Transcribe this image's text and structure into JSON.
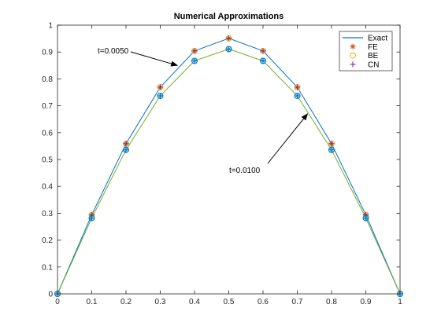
{
  "chart_data": {
    "type": "line",
    "title": "Numerical Approximations",
    "xlabel": "",
    "ylabel": "",
    "xlim": [
      0,
      1
    ],
    "ylim": [
      0,
      1
    ],
    "xticks": [
      "0",
      "0.1",
      "0.2",
      "0.3",
      "0.4",
      "0.5",
      "0.6",
      "0.7",
      "0.8",
      "0.9",
      "1"
    ],
    "yticks": [
      "0",
      "0.1",
      "0.2",
      "0.3",
      "0.4",
      "0.5",
      "0.6",
      "0.7",
      "0.8",
      "0.9",
      "1"
    ],
    "grid": false,
    "legend_position": "top-right",
    "x": [
      0,
      0.1,
      0.2,
      0.3,
      0.4,
      0.5,
      0.6,
      0.7,
      0.8,
      0.9,
      1.0
    ],
    "series": [
      {
        "name": "Exact",
        "group": "t=0.0050",
        "values": [
          0,
          0.294,
          0.559,
          0.769,
          0.904,
          0.951,
          0.904,
          0.769,
          0.559,
          0.294,
          0
        ],
        "style": "line",
        "color": "#0072BD"
      },
      {
        "name": "Exact",
        "group": "t=0.0100",
        "values": [
          0,
          0.282,
          0.536,
          0.737,
          0.867,
          0.911,
          0.867,
          0.737,
          0.536,
          0.282,
          0
        ],
        "style": "line",
        "color": "#77AC30"
      },
      {
        "name": "FE",
        "group": "t=0.0050",
        "values": [
          0,
          0.294,
          0.559,
          0.769,
          0.904,
          0.951,
          0.904,
          0.769,
          0.559,
          0.294,
          0
        ],
        "style": "asterisk",
        "color": "#D95319"
      },
      {
        "name": "BE",
        "group": "t=0.0050",
        "values": [
          0,
          0.294,
          0.559,
          0.769,
          0.904,
          0.951,
          0.904,
          0.769,
          0.559,
          0.294,
          0
        ],
        "style": "circle",
        "color": "#EDB120"
      },
      {
        "name": "CN",
        "group": "t=0.0050",
        "values": [
          0,
          0.294,
          0.559,
          0.769,
          0.904,
          0.951,
          0.904,
          0.769,
          0.559,
          0.294,
          0
        ],
        "style": "plus",
        "color": "#7E2F8E"
      },
      {
        "name": "FE",
        "group": "t=0.0100",
        "values": [
          0,
          0.282,
          0.536,
          0.737,
          0.867,
          0.911,
          0.867,
          0.737,
          0.536,
          0.282,
          0
        ],
        "style": "asterisk",
        "color": "#4DBEEE"
      },
      {
        "name": "BE",
        "group": "t=0.0100",
        "values": [
          0,
          0.282,
          0.536,
          0.737,
          0.867,
          0.911,
          0.867,
          0.737,
          0.536,
          0.282,
          0
        ],
        "style": "circle",
        "color": "#0072BD"
      },
      {
        "name": "CN",
        "group": "t=0.0100",
        "values": [
          0,
          0.282,
          0.536,
          0.737,
          0.867,
          0.911,
          0.867,
          0.737,
          0.536,
          0.282,
          0
        ],
        "style": "plus",
        "color": "#0072BD"
      }
    ],
    "legend": [
      {
        "label": "Exact",
        "style": "line",
        "color": "#0072BD"
      },
      {
        "label": "FE",
        "style": "asterisk",
        "color": "#D95319"
      },
      {
        "label": "BE",
        "style": "circle",
        "color": "#EDB120"
      },
      {
        "label": "CN",
        "style": "plus",
        "color": "#7E2F8E"
      }
    ],
    "annotations": [
      {
        "text": "t=0.0050",
        "points_to": {
          "x": 0.35,
          "y": 0.85
        }
      },
      {
        "text": "t=0.0100",
        "points_to": {
          "x": 0.73,
          "y": 0.67
        }
      }
    ]
  }
}
